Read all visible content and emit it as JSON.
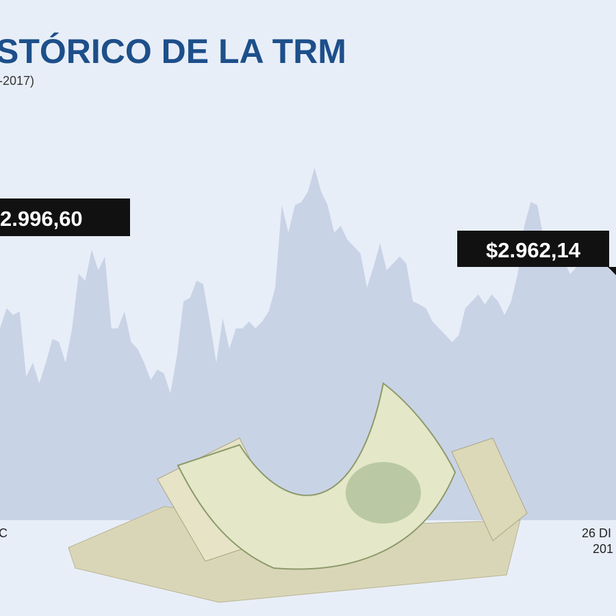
{
  "chart_data": {
    "type": "area",
    "title": "STÓRICO DE LA TRM",
    "subtitle": "-2017)",
    "color": "#c9d3e6",
    "ylim": [
      2400,
      3400
    ],
    "values": [
      2875,
      2925,
      2908,
      2917,
      2756,
      2790,
      2739,
      2790,
      2849,
      2841,
      2790,
      2875,
      3010,
      2993,
      3070,
      3019,
      3053,
      2875,
      2875,
      2917,
      2841,
      2824,
      2790,
      2747,
      2773,
      2764,
      2714,
      2807,
      2942,
      2951,
      2993,
      2985,
      2892,
      2790,
      2900,
      2824,
      2875,
      2875,
      2892,
      2875,
      2892,
      2917,
      2976,
      3180,
      3112,
      3180,
      3188,
      3214,
      3273,
      3214,
      3180,
      3112,
      3129,
      3095,
      3078,
      3061,
      2976,
      3027,
      3086,
      3019,
      3036,
      3053,
      3036,
      2942,
      2934,
      2925,
      2892,
      2875,
      2858,
      2841,
      2858,
      2925,
      2942,
      2959,
      2934,
      2959,
      2942,
      2908,
      2942,
      3010,
      3129,
      3188,
      3180,
      3095,
      3044,
      3053,
      3044,
      3010,
      3027,
      3044,
      3078,
      3078,
      3120,
      3019,
      3010
    ],
    "annotations": [
      "2.996,60",
      "$2.962,14"
    ],
    "x_labels": [
      "C",
      "26 DI",
      "201"
    ]
  }
}
